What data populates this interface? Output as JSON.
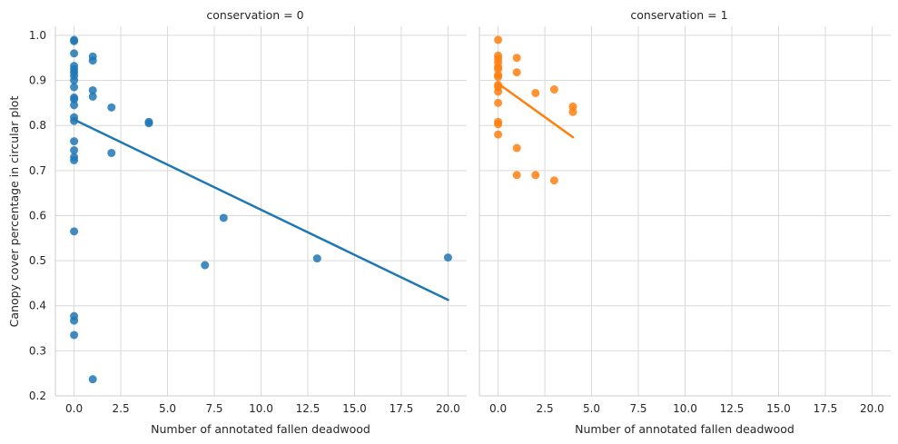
{
  "chart_data": {
    "type": "scatter",
    "ylabel": "Canopy cover percentage in circular plot",
    "ylim": [
      0.2,
      1.02
    ],
    "yticks": [
      "0.2",
      "0.3",
      "0.4",
      "0.5",
      "0.6",
      "0.7",
      "0.8",
      "0.9",
      "1.0"
    ],
    "yticks_values": [
      0.2,
      0.3,
      0.4,
      0.5,
      0.6,
      0.7,
      0.8,
      0.9,
      1.0
    ],
    "xlim": [
      -1.0,
      21.0
    ],
    "xticks": [
      "0.0",
      "2.5",
      "5.0",
      "7.5",
      "10.0",
      "12.5",
      "15.0",
      "17.5",
      "20.0"
    ],
    "xticks_values": [
      0,
      2.5,
      5,
      7.5,
      10,
      12.5,
      15,
      17.5,
      20
    ],
    "grid": true,
    "panels": [
      {
        "title": "conservation = 0",
        "xlabel": "Number of annotated fallen deadwood",
        "color": "#1f77b4",
        "points": [
          [
            0,
            0.99
          ],
          [
            0,
            0.987
          ],
          [
            0,
            0.96
          ],
          [
            0,
            0.932
          ],
          [
            0,
            0.925
          ],
          [
            0,
            0.918
          ],
          [
            0,
            0.91
          ],
          [
            0,
            0.9
          ],
          [
            0,
            0.885
          ],
          [
            0,
            0.862
          ],
          [
            0,
            0.858
          ],
          [
            0,
            0.845
          ],
          [
            0,
            0.818
          ],
          [
            0,
            0.81
          ],
          [
            0,
            0.765
          ],
          [
            0,
            0.745
          ],
          [
            0,
            0.73
          ],
          [
            0,
            0.723
          ],
          [
            0,
            0.565
          ],
          [
            0,
            0.377
          ],
          [
            0,
            0.367
          ],
          [
            0,
            0.335
          ],
          [
            1,
            0.953
          ],
          [
            1,
            0.944
          ],
          [
            1,
            0.878
          ],
          [
            1,
            0.864
          ],
          [
            1,
            0.237
          ],
          [
            2,
            0.84
          ],
          [
            2,
            0.739
          ],
          [
            4,
            0.808
          ],
          [
            4,
            0.805
          ],
          [
            7,
            0.49
          ],
          [
            8,
            0.595
          ],
          [
            13,
            0.505
          ],
          [
            20,
            0.507
          ]
        ],
        "regression": {
          "x": [
            0,
            20
          ],
          "y": [
            0.813,
            0.413
          ]
        }
      },
      {
        "title": "conservation = 1",
        "xlabel": "Number of annotated fallen deadwood",
        "color": "#ff7f0e",
        "points": [
          [
            0,
            0.99
          ],
          [
            0,
            0.955
          ],
          [
            0,
            0.948
          ],
          [
            0,
            0.94
          ],
          [
            0,
            0.93
          ],
          [
            0,
            0.925
          ],
          [
            0,
            0.912
          ],
          [
            0,
            0.908
          ],
          [
            0,
            0.89
          ],
          [
            0,
            0.885
          ],
          [
            0,
            0.875
          ],
          [
            0,
            0.85
          ],
          [
            0,
            0.808
          ],
          [
            0,
            0.803
          ],
          [
            0,
            0.78
          ],
          [
            1,
            0.95
          ],
          [
            1,
            0.918
          ],
          [
            1,
            0.75
          ],
          [
            1,
            0.69
          ],
          [
            2,
            0.872
          ],
          [
            2,
            0.69
          ],
          [
            3,
            0.88
          ],
          [
            3,
            0.678
          ],
          [
            4,
            0.842
          ],
          [
            4,
            0.83
          ]
        ],
        "regression": {
          "x": [
            0,
            4
          ],
          "y": [
            0.893,
            0.774
          ]
        }
      }
    ]
  }
}
